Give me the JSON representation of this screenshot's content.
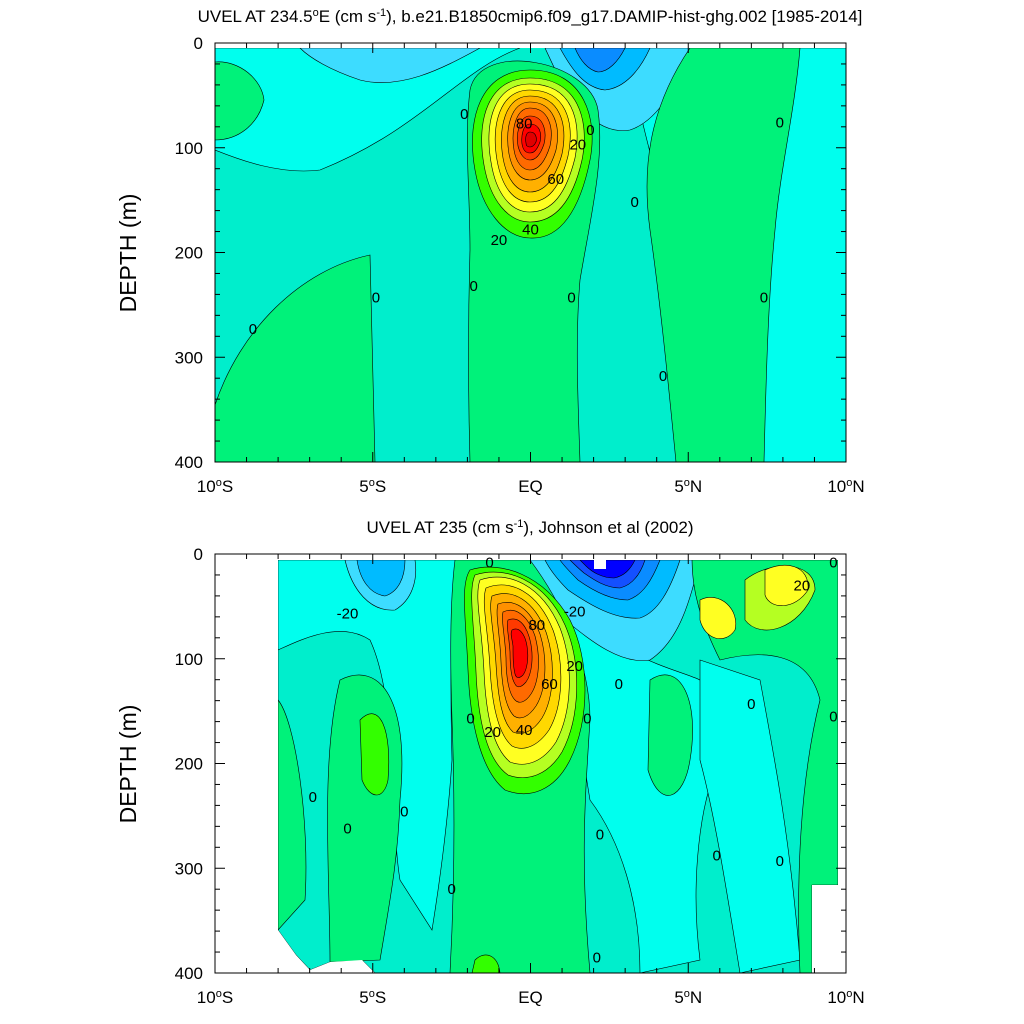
{
  "colors": {
    "scale": [
      "#0000ff",
      "#1450ff",
      "#0a8cff",
      "#00bbff",
      "#3ddcff",
      "#00ffee",
      "#00eecc",
      "#00f27a",
      "#33ff00",
      "#b5ff22",
      "#ffff22",
      "#ffd800",
      "#ffb000",
      "#ff9000",
      "#ff6a00",
      "#ff3a00",
      "#ff0000",
      "#e00000"
    ]
  },
  "chart_data": [
    {
      "type": "contour",
      "title_main": "UVEL AT 234.5",
      "title_deg": "o",
      "title_mid": "E (cm s",
      "title_exp": "-1",
      "title_tail": "), b.e21.B1850cmip6.f09_g17.DAMIP-hist-ghg.002 [1985-2014]",
      "ylabel": "DEPTH (m)",
      "xlim": [
        -10,
        10
      ],
      "ylim": [
        400,
        0
      ],
      "xticks": [
        {
          "value": -10,
          "num": "10",
          "deg": "o",
          "hemi": "S"
        },
        {
          "value": -5,
          "num": "5",
          "deg": "o",
          "hemi": "S"
        },
        {
          "value": 0,
          "num": "EQ",
          "deg": "",
          "hemi": ""
        },
        {
          "value": 5,
          "num": "5",
          "deg": "o",
          "hemi": "N"
        },
        {
          "value": 10,
          "num": "10",
          "deg": "o",
          "hemi": "N"
        }
      ],
      "yticks": [
        {
          "value": 0,
          "label": "0"
        },
        {
          "value": 100,
          "label": "100"
        },
        {
          "value": 200,
          "label": "200"
        },
        {
          "value": 300,
          "label": "300"
        },
        {
          "value": 400,
          "label": "400"
        }
      ],
      "contour_labels": [
        {
          "x": -8.8,
          "y": 273,
          "text": "0"
        },
        {
          "x": -4.9,
          "y": 243,
          "text": "0"
        },
        {
          "x": -2.1,
          "y": 68,
          "text": "0"
        },
        {
          "x": -1.8,
          "y": 232,
          "text": "0"
        },
        {
          "x": 1.3,
          "y": 243,
          "text": "0"
        },
        {
          "x": 1.9,
          "y": 83,
          "text": "0"
        },
        {
          "x": 3.3,
          "y": 152,
          "text": "0"
        },
        {
          "x": 4.2,
          "y": 318,
          "text": "0"
        },
        {
          "x": 7.4,
          "y": 243,
          "text": "0"
        },
        {
          "x": 7.9,
          "y": 76,
          "text": "0"
        },
        {
          "x": 1.5,
          "y": 97,
          "text": "20"
        },
        {
          "x": -1.0,
          "y": 188,
          "text": "20"
        },
        {
          "x": 0.0,
          "y": 178,
          "text": "40"
        },
        {
          "x": 0.8,
          "y": 130,
          "text": "60"
        },
        {
          "x": -0.2,
          "y": 77,
          "text": "80"
        }
      ]
    },
    {
      "type": "contour",
      "title_main": "UVEL AT 235 (cm s",
      "title_exp": "-1",
      "title_tail": "), Johnson et al (2002)",
      "ylabel": "DEPTH (m)",
      "xlim": [
        -10,
        10
      ],
      "ylim": [
        400,
        0
      ],
      "xticks": [
        {
          "value": -10,
          "num": "10",
          "deg": "o",
          "hemi": "S"
        },
        {
          "value": -5,
          "num": "5",
          "deg": "o",
          "hemi": "S"
        },
        {
          "value": 0,
          "num": "EQ",
          "deg": "",
          "hemi": ""
        },
        {
          "value": 5,
          "num": "5",
          "deg": "o",
          "hemi": "N"
        },
        {
          "value": 10,
          "num": "10",
          "deg": "o",
          "hemi": "N"
        }
      ],
      "yticks": [
        {
          "value": 0,
          "label": "0"
        },
        {
          "value": 100,
          "label": "100"
        },
        {
          "value": 200,
          "label": "200"
        },
        {
          "value": 300,
          "label": "300"
        },
        {
          "value": 400,
          "label": "400"
        }
      ],
      "contour_labels": [
        {
          "x": -5.8,
          "y": 57,
          "text": "-20"
        },
        {
          "x": -1.3,
          "y": 8,
          "text": "0"
        },
        {
          "x": 1.4,
          "y": 55,
          "text": "-20"
        },
        {
          "x": 1.4,
          "y": 107,
          "text": "20"
        },
        {
          "x": -1.2,
          "y": 170,
          "text": "20"
        },
        {
          "x": -0.2,
          "y": 168,
          "text": "40"
        },
        {
          "x": 0.6,
          "y": 124,
          "text": "60"
        },
        {
          "x": 0.2,
          "y": 68,
          "text": "80"
        },
        {
          "x": -1.9,
          "y": 157,
          "text": "0"
        },
        {
          "x": 1.8,
          "y": 157,
          "text": "0"
        },
        {
          "x": 2.8,
          "y": 124,
          "text": "0"
        },
        {
          "x": 7.0,
          "y": 143,
          "text": "0"
        },
        {
          "x": 9.6,
          "y": 155,
          "text": "0"
        },
        {
          "x": 9.6,
          "y": 8,
          "text": "0"
        },
        {
          "x": 8.6,
          "y": 30,
          "text": "20"
        },
        {
          "x": -6.9,
          "y": 232,
          "text": "0"
        },
        {
          "x": -5.8,
          "y": 262,
          "text": "0"
        },
        {
          "x": -4.0,
          "y": 246,
          "text": "0"
        },
        {
          "x": -2.5,
          "y": 320,
          "text": "0"
        },
        {
          "x": 2.2,
          "y": 268,
          "text": "0"
        },
        {
          "x": 5.9,
          "y": 288,
          "text": "0"
        },
        {
          "x": 7.9,
          "y": 293,
          "text": "0"
        },
        {
          "x": 2.1,
          "y": 385,
          "text": "0"
        }
      ]
    }
  ]
}
